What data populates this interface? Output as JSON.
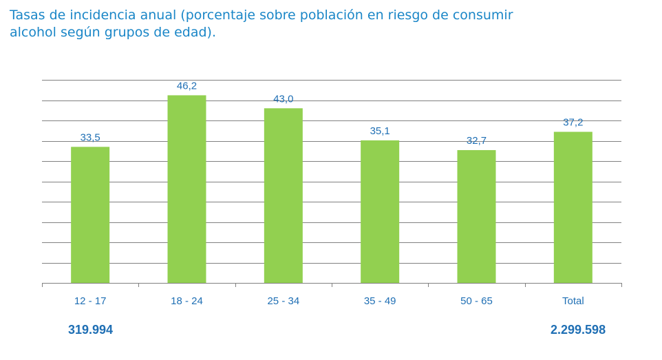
{
  "title_lines": [
    "Tasas de incidencia anual (porcentaje sobre población en riesgo de consumir",
    "alcohol según grupos de edad)."
  ],
  "colors": {
    "bar": "#92d050",
    "label": "#1f6fb4",
    "title": "#1a86c7",
    "grid": "#808080"
  },
  "chart_data": {
    "type": "bar",
    "categories": [
      "12 - 17",
      "18 - 24",
      "25 - 34",
      "35 - 49",
      "50 - 65",
      "Total"
    ],
    "values": [
      33.5,
      46.2,
      43.0,
      35.1,
      32.7,
      37.2
    ],
    "value_labels": [
      "33,5",
      "46,2",
      "43,0",
      "35,1",
      "32,7",
      "37,2"
    ],
    "ylim": [
      0,
      50
    ],
    "grid": true,
    "xlabel": "",
    "ylabel": ""
  },
  "footer": {
    "left": "319.994",
    "right": "2.299.598"
  }
}
